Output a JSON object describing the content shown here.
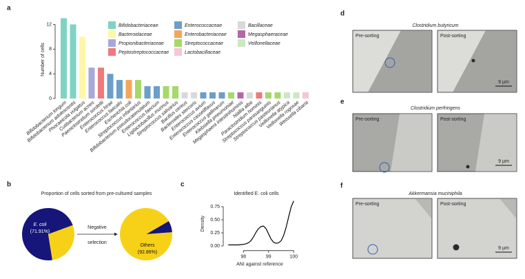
{
  "panel_labels": [
    "a",
    "b",
    "c",
    "d",
    "e",
    "f"
  ],
  "chart_data": [
    {
      "type": "bar",
      "ylabel": "Number of cells",
      "categories": [
        "Bifidobacterium longum",
        "Bifidobacterium adolescentis",
        "Phocaeicola vulgatus",
        "Cutibacterium acnes",
        "Paeniclostridium sordellii",
        "Enterococcus hirae",
        "Enterococcus faecalis",
        "Escherichia coli",
        "Streptococcus infantarius",
        "Bifidobacterium pseudocatenulatum",
        "Enterococcus faecium",
        "Ligilactobacillus murinus",
        "Streptococcus salivarius",
        "Bacillus cereus",
        "Bacteroides stercoris",
        "Enterococcus avium",
        "Enterococcus casseliflavus",
        "Enterococcus gallinarum",
        "Klebsiella pneumoniae",
        "Megasphaera intestinihominis",
        "Niallia alba",
        "Paraclostridium hominis",
        "Streptococcus parasanguinis",
        "Streptococcus pasteurianus",
        "Veillonella atypica",
        "Veillonella rogosae",
        "Weissella cibaria"
      ],
      "values": [
        13,
        12,
        10,
        5,
        5,
        4,
        3,
        3,
        3,
        2,
        2,
        2,
        2,
        1,
        1,
        1,
        1,
        1,
        1,
        1,
        1,
        1,
        1,
        1,
        1,
        1,
        1
      ],
      "colors": [
        "#7fd3c2",
        "#7fd3c2",
        "#fff6a8",
        "#a7a9d6",
        "#f0797a",
        "#6b9ec8",
        "#6b9ec8",
        "#f5a55a",
        "#a6d86b",
        "#6b9ec8",
        "#6b9ec8",
        "#a6d86b",
        "#a6d86b",
        "#d9d9d9",
        "#d9d9d9",
        "#6b9ec8",
        "#6b9ec8",
        "#6b9ec8",
        "#a6d86b",
        "#b367a8",
        "#d9d9d9",
        "#f0797a",
        "#a6d86b",
        "#a6d86b",
        "#cde8c0",
        "#cde8c0",
        "#f7c4d9"
      ],
      "legend": [
        {
          "name": "Bifidobacteriaceae",
          "color": "#7fd3c2"
        },
        {
          "name": "Bacteroidaceae",
          "color": "#fff6a8"
        },
        {
          "name": "Propionibacteriaceae",
          "color": "#a7a9d6"
        },
        {
          "name": "Peptostreptococcaceae",
          "color": "#f0797a"
        },
        {
          "name": "Enterococcaceae",
          "color": "#6b9ec8"
        },
        {
          "name": "Enterobacteriaceae",
          "color": "#f5a55a"
        },
        {
          "name": "Streptococcaceae",
          "color": "#a6d86b"
        },
        {
          "name": "Lactobacillaceae",
          "color": "#f7c4d9"
        },
        {
          "name": "Bacillaceae",
          "color": "#d9d9d9"
        },
        {
          "name": "Megasphaeraceae",
          "color": "#b367a8"
        },
        {
          "name": "Veillonellaceae",
          "color": "#cde8c0"
        }
      ],
      "ylim": [
        0,
        13.5
      ],
      "yticks": [
        0,
        4,
        8,
        12
      ]
    },
    {
      "type": "pie",
      "title": "Proportion of cells sorted from pre-cultured samples",
      "annotation": [
        "Negative",
        "selection"
      ],
      "pies": [
        {
          "categories": [
            "E. coli",
            null
          ],
          "values": [
            71.91,
            28.09
          ],
          "value_labels": [
            "(71.91%)",
            null
          ],
          "colors": [
            "#15157a",
            "#f7d117"
          ]
        },
        {
          "categories": [
            null,
            "Others"
          ],
          "values": [
            7.14,
            92.86
          ],
          "value_labels": [
            null,
            "(92.86%)"
          ],
          "colors": [
            "#15157a",
            "#f7d117"
          ]
        }
      ]
    },
    {
      "type": "line",
      "title": "Identified E. coli cells",
      "xlabel": "ANI against reference",
      "ylabel": "Density",
      "x": [
        97.4,
        97.6,
        97.8,
        98.0,
        98.1,
        98.2,
        98.3,
        98.4,
        98.5,
        98.6,
        98.7,
        98.8,
        98.9,
        99.0,
        99.1,
        99.2,
        99.3,
        99.4,
        99.5,
        99.6,
        99.7,
        99.8,
        99.9,
        100.0
      ],
      "values": [
        0.02,
        0.02,
        0.02,
        0.03,
        0.04,
        0.06,
        0.1,
        0.17,
        0.26,
        0.33,
        0.37,
        0.38,
        0.33,
        0.23,
        0.13,
        0.07,
        0.05,
        0.06,
        0.1,
        0.2,
        0.36,
        0.56,
        0.75,
        0.86
      ],
      "color": "#000000",
      "xlim": [
        97.2,
        100.1
      ],
      "xticks": [
        98,
        99,
        100
      ],
      "ylim": [
        -0.05,
        0.9
      ],
      "yticks": [
        {
          "value": 0,
          "label": "0.00"
        },
        {
          "value": 0.25,
          "label": "0.25"
        },
        {
          "value": 0.5,
          "label": "0.50"
        },
        {
          "value": 0.75,
          "label": "0.75"
        }
      ]
    }
  ],
  "micrographs": [
    {
      "species": "Clostridium butyricum",
      "pre_label": "Pre-sorting",
      "post_label": "Post-sorting",
      "scale_bar": "9 µm"
    },
    {
      "species": "Clostridium perfringens",
      "pre_label": "Pre-sorting",
      "post_label": "Post-sorting",
      "scale_bar": "9 µm"
    },
    {
      "species": "Akkermansia muciniphila",
      "pre_label": "Pre-sorting",
      "post_label": "Post-sorting",
      "scale_bar": "9 µm"
    }
  ]
}
